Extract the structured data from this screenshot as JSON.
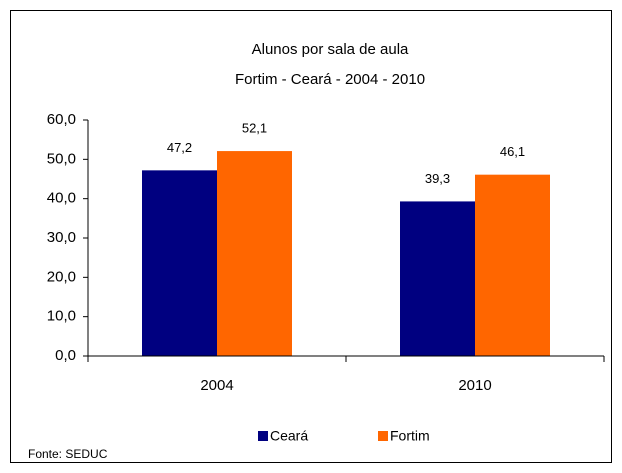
{
  "chart_data": {
    "type": "bar",
    "title": "Alunos por sala de aula",
    "subtitle": "Fortim - Ceará - 2004 - 2010",
    "categories": [
      "2004",
      "2010"
    ],
    "series": [
      {
        "name": "Ceará",
        "color": "#000080",
        "values": [
          47.2,
          39.3
        ],
        "value_labels": [
          "47,2",
          "39,3"
        ]
      },
      {
        "name": "Fortim",
        "color": "#ff6600",
        "values": [
          52.1,
          46.1
        ],
        "value_labels": [
          "52,1",
          "46,1"
        ]
      }
    ],
    "ylim": [
      0,
      60
    ],
    "yticks": [
      {
        "value": 0,
        "label": "0,0"
      },
      {
        "value": 10,
        "label": "10,0"
      },
      {
        "value": 20,
        "label": "20,0"
      },
      {
        "value": 30,
        "label": "30,0"
      },
      {
        "value": 40,
        "label": "40,0"
      },
      {
        "value": 50,
        "label": "50,0"
      },
      {
        "value": 60,
        "label": "60,0"
      }
    ],
    "grid": false,
    "legend": "bottom",
    "source": "Fonte: SEDUC"
  }
}
